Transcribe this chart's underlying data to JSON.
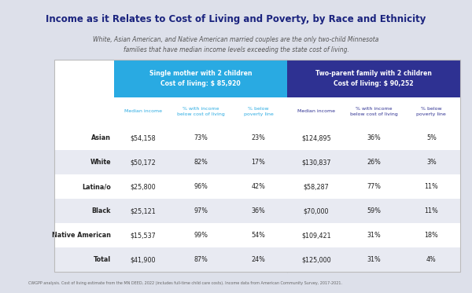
{
  "title": "Income as it Relates to Cost of Living and Poverty, by Race and Ethnicity",
  "subtitle": "White, Asian American, and Native American married couples are the only two-child Minnesota\nfamilies that have median income levels exceeding the state cost of living.",
  "footnote": "CWGPP analysis. Cost of living estimate from the MN DEED, 2022 (includes full-time child care costs). Income data from American Community Survey, 2017-2021.",
  "col_group1_title": "Single mother with 2 children\nCost of living: $ 85,920",
  "col_group2_title": "Two-parent family with 2 children\nCost of living: $ 90,252",
  "col_headers": [
    "Median income",
    "% with income\nbelow cost of living",
    "% below\npoverty line",
    "Median income",
    "% with income\nbelow cost of living",
    "% below\npoverty line"
  ],
  "row_labels": [
    "Asian",
    "White",
    "Latina/o",
    "Black",
    "Native American",
    "Total"
  ],
  "data": [
    [
      "$54,158",
      "73%",
      "23%",
      "$124,895",
      "36%",
      "5%"
    ],
    [
      "$50,172",
      "82%",
      "17%",
      "$130,837",
      "26%",
      "3%"
    ],
    [
      "$25,800",
      "96%",
      "42%",
      "$58,287",
      "77%",
      "11%"
    ],
    [
      "$25,121",
      "97%",
      "36%",
      "$70,000",
      "59%",
      "11%"
    ],
    [
      "$15,537",
      "99%",
      "54%",
      "$109,421",
      "31%",
      "18%"
    ],
    [
      "$41,900",
      "87%",
      "24%",
      "$125,000",
      "31%",
      "4%"
    ]
  ],
  "bg_color": "#dde0ea",
  "table_bg": "#ffffff",
  "group1_header_color": "#29aae2",
  "group2_header_color": "#2e3192",
  "title_color": "#1a237e",
  "subtitle_color": "#555555",
  "alt_row_bg": "#e8eaf2",
  "white_row_bg": "#ffffff",
  "subheader_text_color1": "#29aae2",
  "subheader_text_color2": "#2e3192",
  "cell_text_color": "#222222",
  "footnote_color": "#666666",
  "line_color": "#bbbbbb",
  "divider_color": "#888888"
}
